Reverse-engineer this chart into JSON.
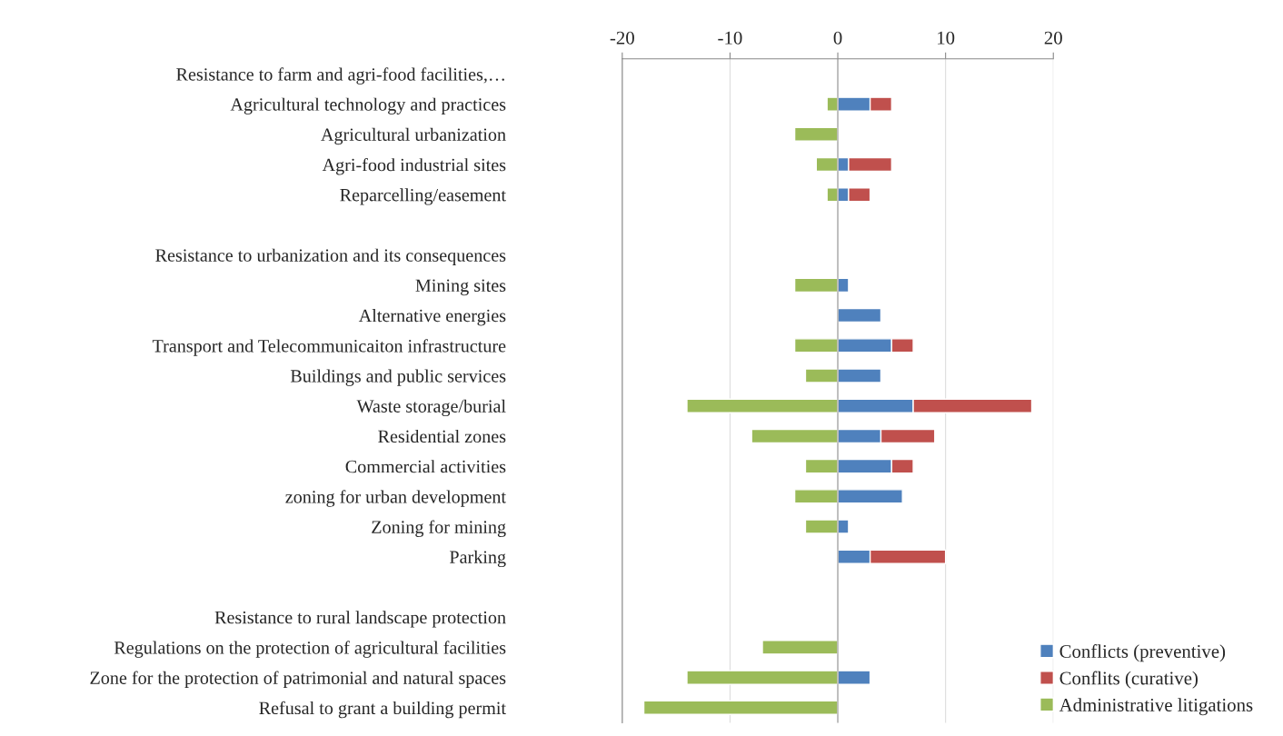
{
  "chart_data": {
    "type": "bar",
    "orientation": "horizontal",
    "stacked": true,
    "categories": [
      "Resistance to farm and agri-food facilities,…",
      "Agricultural technology and practices",
      "Agricultural urbanization",
      "Agri-food industrial sites",
      "Reparcelling/easement",
      null,
      "Resistance to urbanization and its consequences",
      "Mining sites",
      "Alternative energies",
      "Transport and Telecommunicaiton infrastructure",
      "Buildings and public services",
      "Waste storage/burial",
      "Residential zones",
      "Commercial activities",
      "zoning for urban development",
      "Zoning for mining",
      "Parking",
      null,
      "Resistance to rural landscape protection",
      "Regulations on the protection of agricultural facilities",
      "Zone for the protection of patrimonial and natural spaces",
      "Refusal to grant a building permit"
    ],
    "series": [
      {
        "name": "Conflicts (preventive)",
        "color": "#4f81bd",
        "values": [
          null,
          3,
          null,
          1,
          1,
          null,
          null,
          1,
          4,
          5,
          4,
          7,
          4,
          5,
          6,
          1,
          3,
          null,
          null,
          null,
          3,
          null
        ]
      },
      {
        "name": "Conflits (curative)",
        "color": "#c0504d",
        "values": [
          null,
          2,
          null,
          4,
          2,
          null,
          null,
          null,
          null,
          2,
          null,
          11,
          5,
          2,
          null,
          null,
          7,
          null,
          null,
          null,
          null,
          null
        ]
      },
      {
        "name": "Administrative litigations",
        "color": "#9bbb59",
        "values": [
          null,
          -1,
          -4,
          -2,
          -1,
          null,
          null,
          -4,
          null,
          -4,
          -3,
          -14,
          -8,
          -3,
          -4,
          -3,
          null,
          null,
          null,
          -7,
          -14,
          -18
        ]
      }
    ],
    "xlim": [
      -20,
      20
    ],
    "xticks": [
      -20,
      -10,
      0,
      10,
      20
    ],
    "grid": "x",
    "legend": "bottom right"
  }
}
